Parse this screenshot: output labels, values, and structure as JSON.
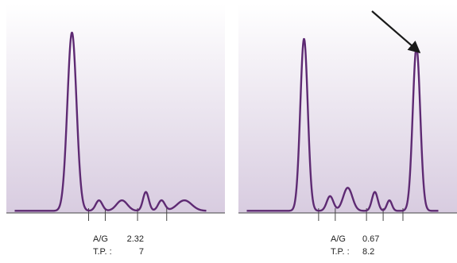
{
  "colors": {
    "trace": "#5e2a73",
    "background_top": "#ffffff",
    "background_bottom": "#d8cce0",
    "arrow": "#1a1a1a",
    "axis": "#444444"
  },
  "chart_data": [
    {
      "type": "line",
      "panel": "left",
      "xlim": [
        0,
        100
      ],
      "ylim": [
        0,
        100
      ],
      "baseline": 1,
      "peaks": [
        {
          "x": 31.5,
          "height": 85,
          "width": 2.2
        },
        {
          "x": 44.5,
          "height": 5,
          "width": 1.6
        },
        {
          "x": 55.5,
          "height": 5,
          "width": 2.6
        },
        {
          "x": 67.0,
          "height": 9,
          "width": 1.4
        },
        {
          "x": 74.5,
          "height": 5,
          "width": 1.6
        },
        {
          "x": 85.5,
          "height": 5,
          "width": 3.5
        }
      ],
      "ticks_x": [
        39.5,
        47.5,
        63.0,
        77.0
      ],
      "labels": [
        {
          "label": "A/G",
          "value": "2.32"
        },
        {
          "label": "T.P. :",
          "value": "7"
        }
      ]
    },
    {
      "type": "line",
      "panel": "right",
      "xlim": [
        0,
        100
      ],
      "ylim": [
        0,
        100
      ],
      "baseline": 1,
      "peaks": [
        {
          "x": 31.5,
          "height": 82,
          "width": 1.8
        },
        {
          "x": 44.0,
          "height": 7,
          "width": 1.6
        },
        {
          "x": 52.5,
          "height": 11,
          "width": 2.2
        },
        {
          "x": 65.5,
          "height": 9,
          "width": 1.4
        },
        {
          "x": 72.5,
          "height": 5,
          "width": 1.2
        },
        {
          "x": 85.5,
          "height": 78,
          "width": 1.8
        }
      ],
      "ticks_x": [
        38.5,
        46.5,
        61.5,
        69.5,
        79.0
      ],
      "annotation": {
        "type": "arrow",
        "target_peak": 5
      },
      "labels": [
        {
          "label": "A/G",
          "value": "0.67"
        },
        {
          "label": "T.P. :",
          "value": "8.2"
        }
      ]
    }
  ]
}
